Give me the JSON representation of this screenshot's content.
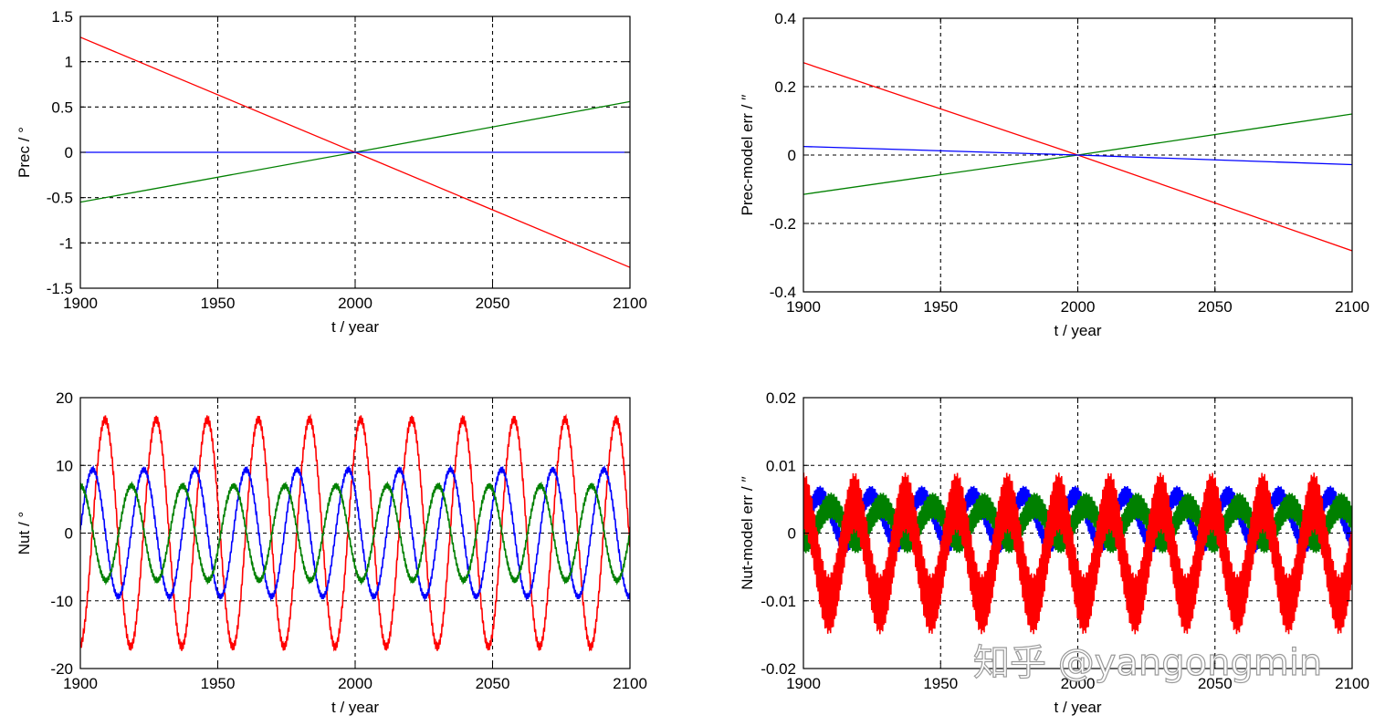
{
  "watermark": "知乎 @yangongmin",
  "chart_data": [
    {
      "type": "line",
      "xlabel": "t / year",
      "ylabel": "Prec / °",
      "xlim": [
        1900,
        2100
      ],
      "ylim": [
        -1.5,
        1.5
      ],
      "xticks": [
        1900,
        1950,
        2000,
        2050,
        2100
      ],
      "xtick_labels": [
        "1900",
        "1950",
        "2000",
        "2050",
        "2100"
      ],
      "yticks": [
        -1.5,
        -1,
        -0.5,
        0,
        0.5,
        1,
        1.5
      ],
      "ytick_labels": [
        "-1.5",
        "-1",
        "-0.5",
        "0",
        "0.5",
        "1",
        "1.5"
      ],
      "grid": true,
      "series": [
        {
          "color": "#ff0000",
          "x": [
            1900,
            2000,
            2100
          ],
          "y": [
            1.27,
            0,
            -1.27
          ]
        },
        {
          "color": "#008000",
          "x": [
            1900,
            2000,
            2100
          ],
          "y": [
            -0.55,
            0,
            0.56
          ]
        },
        {
          "color": "#0000ff",
          "x": [
            1900,
            2000,
            2100
          ],
          "y": [
            0,
            0,
            0
          ]
        }
      ]
    },
    {
      "type": "line",
      "xlabel": "t / year",
      "ylabel": "Prec-model err / ′′",
      "xlim": [
        1900,
        2100
      ],
      "ylim": [
        -0.4,
        0.4
      ],
      "xticks": [
        1900,
        1950,
        2000,
        2050,
        2100
      ],
      "xtick_labels": [
        "1900",
        "1950",
        "2000",
        "2050",
        "2100"
      ],
      "yticks": [
        -0.4,
        -0.2,
        0,
        0.2,
        0.4
      ],
      "ytick_labels": [
        "-0.4",
        "-0.2",
        "0",
        "0.2",
        "0.4"
      ],
      "grid": true,
      "series": [
        {
          "color": "#ff0000",
          "x": [
            1900,
            2000,
            2100
          ],
          "y": [
            0.27,
            0,
            -0.28
          ]
        },
        {
          "color": "#008000",
          "x": [
            1900,
            2000,
            2100
          ],
          "y": [
            -0.115,
            0,
            0.12
          ]
        },
        {
          "color": "#0000ff",
          "x": [
            1900,
            2000,
            2100
          ],
          "y": [
            0.025,
            0,
            -0.028
          ]
        }
      ]
    },
    {
      "type": "line",
      "xlabel": "t / year",
      "ylabel": "Nut / °",
      "xlim": [
        1900,
        2100
      ],
      "ylim": [
        -20,
        20
      ],
      "xticks": [
        1900,
        1950,
        2000,
        2050,
        2100
      ],
      "xtick_labels": [
        "1900",
        "1950",
        "2000",
        "2050",
        "2100"
      ],
      "yticks": [
        -20,
        -10,
        0,
        10,
        20
      ],
      "ytick_labels": [
        "-20",
        "-10",
        "0",
        "10",
        "20"
      ],
      "grid": true,
      "series": [
        {
          "color": "#ff0000",
          "x": [
            1900,
            2100
          ],
          "amplitude": 16.8,
          "period_years": 18.6,
          "peak_year": 1909,
          "ripple": 0.6
        },
        {
          "color": "#0000ff",
          "x": [
            1900,
            2100
          ],
          "amplitude": 9.4,
          "period_years": 18.6,
          "peak_year": 1904.5,
          "ripple": 0.4
        },
        {
          "color": "#008000",
          "x": [
            1900,
            2100
          ],
          "amplitude": 7.0,
          "period_years": 18.6,
          "peak_year": 1900,
          "ripple": 0.4
        }
      ]
    },
    {
      "type": "line",
      "xlabel": "t / year",
      "ylabel": "Nut-model err / ′′",
      "xlim": [
        1900,
        2100
      ],
      "ylim": [
        -0.02,
        0.02
      ],
      "xticks": [
        1900,
        1950,
        2000,
        2050,
        2100
      ],
      "xtick_labels": [
        "1900",
        "1950",
        "2000",
        "2050",
        "2100"
      ],
      "yticks": [
        -0.02,
        -0.01,
        0,
        0.01,
        0.02
      ],
      "ytick_labels": [
        "-0.02",
        "-0.01",
        "0",
        "0.01",
        "0.02"
      ],
      "grid": true,
      "series": [
        {
          "color": "#0000ff",
          "x": [
            1900,
            2100
          ],
          "offset": 0.002,
          "amplitude": 0.0035,
          "period_years": 18.6,
          "peak_year": 1906,
          "ripple": 0.0015
        },
        {
          "color": "#008000",
          "x": [
            1900,
            2100
          ],
          "offset": 0.0015,
          "amplitude": 0.0025,
          "period_years": 18.6,
          "peak_year": 1910,
          "ripple": 0.002
        },
        {
          "color": "#ff0000",
          "x": [
            1900,
            2100
          ],
          "offset": -0.003,
          "amplitude": 0.0075,
          "period_years": 18.6,
          "peak_year": 1900,
          "ripple": 0.0045
        }
      ]
    }
  ]
}
